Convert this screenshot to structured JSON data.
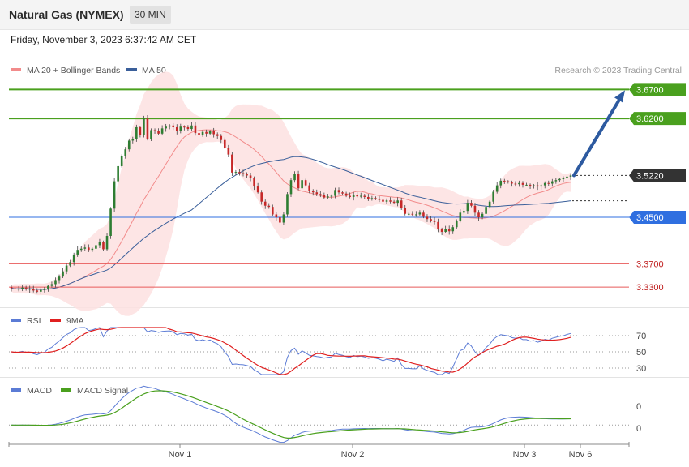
{
  "header": {
    "title": "Natural Gas (NYMEX)",
    "timeframe": "30 MIN",
    "date": "Friday, November 3, 2023 6:37:42 AM CET"
  },
  "legend_main": [
    {
      "label": "MA 20 + Bollinger Bands",
      "color": "#f28b8b"
    },
    {
      "label": "MA 50",
      "color": "#3a5f9a"
    }
  ],
  "credit": "Research © 2023 Trading Central",
  "legend_rsi": [
    {
      "label": "RSI",
      "color": "#5b7bd5"
    },
    {
      "label": "9MA",
      "color": "#e02020"
    }
  ],
  "legend_macd": [
    {
      "label": "MACD",
      "color": "#5b7bd5"
    },
    {
      "label": "MACD Signal",
      "color": "#4aa01e"
    }
  ],
  "colors": {
    "up": "#2e7d32",
    "down": "#c62828",
    "band": "#fde0e0",
    "ma20": "#f28b8b",
    "ma50": "#3a5f9a",
    "resistance": "#4aa01e",
    "support": "#2f6fe0",
    "pivot": "#333333",
    "sr_red": "#e85a5a",
    "arrow": "#2d5aa0"
  },
  "chart_data": [
    {
      "type": "candlestick",
      "name": "price",
      "ylim": [
        3.305,
        3.69
      ],
      "levels": [
        {
          "value": 3.67,
          "label": "3.6700",
          "kind": "resistance"
        },
        {
          "value": 3.62,
          "label": "3.6200",
          "kind": "resistance"
        },
        {
          "value": 3.522,
          "label": "3.5220",
          "kind": "pivot"
        },
        {
          "value": 3.45,
          "label": "3.4500",
          "kind": "support"
        },
        {
          "value": 3.37,
          "label": "3.3700",
          "kind": "sr_red"
        },
        {
          "value": 3.33,
          "label": "3.3300",
          "kind": "sr_red"
        }
      ],
      "close": [
        3.328,
        3.326,
        3.327,
        3.329,
        3.326,
        3.327,
        3.324,
        3.322,
        3.325,
        3.326,
        3.332,
        3.335,
        3.342,
        3.348,
        3.357,
        3.367,
        3.373,
        3.386,
        3.394,
        3.396,
        3.398,
        3.394,
        3.396,
        3.402,
        3.407,
        3.395,
        3.418,
        3.465,
        3.512,
        3.538,
        3.555,
        3.567,
        3.582,
        3.585,
        3.605,
        3.592,
        3.62,
        3.585,
        3.6,
        3.598,
        3.594,
        3.603,
        3.606,
        3.608,
        3.605,
        3.598,
        3.606,
        3.605,
        3.602,
        3.608,
        3.595,
        3.592,
        3.597,
        3.594,
        3.598,
        3.593,
        3.59,
        3.583,
        3.57,
        3.558,
        3.527,
        3.528,
        3.526,
        3.525,
        3.522,
        3.518,
        3.503,
        3.493,
        3.477,
        3.47,
        3.468,
        3.455,
        3.45,
        3.441,
        3.455,
        3.49,
        3.514,
        3.524,
        3.5,
        3.514,
        3.505,
        3.495,
        3.493,
        3.49,
        3.488,
        3.484,
        3.486,
        3.487,
        3.497,
        3.493,
        3.491,
        3.487,
        3.485,
        3.489,
        3.486,
        3.487,
        3.485,
        3.482,
        3.483,
        3.482,
        3.48,
        3.477,
        3.479,
        3.477,
        3.475,
        3.479,
        3.466,
        3.456,
        3.456,
        3.455,
        3.455,
        3.458,
        3.451,
        3.447,
        3.444,
        3.442,
        3.43,
        3.425,
        3.43,
        3.426,
        3.433,
        3.444,
        3.458,
        3.461,
        3.475,
        3.47,
        3.458,
        3.45,
        3.456,
        3.468,
        3.477,
        3.494,
        3.505,
        3.513,
        3.512,
        3.511,
        3.508,
        3.507,
        3.509,
        3.506,
        3.506,
        3.504,
        3.505,
        3.503,
        3.505,
        3.509,
        3.508,
        3.512,
        3.514,
        3.516,
        3.517,
        3.52,
        3.522
      ],
      "annotations": [
        "Nov 1",
        "Nov 2",
        "Nov 3",
        "Nov 6"
      ]
    },
    {
      "type": "line",
      "name": "rsi",
      "ylim": [
        20,
        82
      ],
      "ticks": [
        70,
        50,
        30
      ],
      "series": [
        {
          "name": "RSI"
        },
        {
          "name": "9MA"
        }
      ]
    },
    {
      "type": "line",
      "name": "macd",
      "ylim": [
        -0.03,
        0.05
      ],
      "ticks": [
        "0",
        "0"
      ],
      "series": [
        {
          "name": "MACD"
        },
        {
          "name": "MACD Signal"
        }
      ]
    }
  ],
  "xaxis": {
    "labels": [
      "Nov 1",
      "Nov 2",
      "Nov 3",
      "Nov 6"
    ]
  }
}
